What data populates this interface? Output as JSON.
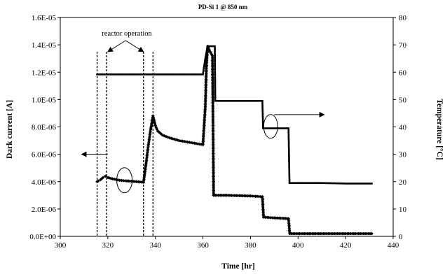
{
  "chart_data": {
    "type": "line",
    "title": "PD-Si 1 @ 850 nm",
    "xlabel": "Time [hr]",
    "ylabel_left": "Dark current [A]",
    "ylabel_right": "Temperature [°C]",
    "xlim": [
      300,
      440
    ],
    "ylim_left": [
      0,
      1.6e-05
    ],
    "ylim_right": [
      0,
      80
    ],
    "x_ticks": [
      "300",
      "320",
      "340",
      "360",
      "380",
      "400",
      "420",
      "440"
    ],
    "y_left_ticks": [
      "0.0E+00",
      "2.0E-06",
      "4.0E-06",
      "6.0E-06",
      "8.0E-06",
      "1.0E-05",
      "1.2E-05",
      "1.4E-05",
      "1.6E-05"
    ],
    "y_right_ticks": [
      "0",
      "10",
      "20",
      "30",
      "40",
      "50",
      "60",
      "70",
      "80"
    ],
    "grid": false,
    "legend": "none",
    "annotation": "reactor operation",
    "reactor_operation_lines_x": [
      315.5,
      319.5,
      335,
      339
    ],
    "series": [
      {
        "axis": "left",
        "marker": "diamond",
        "points": [
          [
            315.5,
            4e-06
          ],
          [
            316,
            4.05e-06
          ],
          [
            317,
            4.15e-06
          ],
          [
            318,
            4.3e-06
          ],
          [
            319,
            4.4e-06
          ],
          [
            320,
            4.3e-06
          ],
          [
            322,
            4.2e-06
          ],
          [
            325,
            4.1e-06
          ],
          [
            328,
            4.05e-06
          ],
          [
            332,
            4e-06
          ],
          [
            335,
            3.95e-06
          ],
          [
            336,
            5.2e-06
          ],
          [
            337,
            6.6e-06
          ],
          [
            338,
            7.8e-06
          ],
          [
            339,
            8.8e-06
          ],
          [
            340,
            8.1e-06
          ],
          [
            341,
            7.7e-06
          ],
          [
            343,
            7.4e-06
          ],
          [
            346,
            7.2e-06
          ],
          [
            350,
            7e-06
          ],
          [
            355,
            6.85e-06
          ],
          [
            360,
            6.7e-06
          ],
          [
            361,
            9.5e-06
          ],
          [
            361.5,
            1.25e-05
          ],
          [
            362,
            1.39e-05
          ],
          [
            363,
            1.35e-05
          ],
          [
            364,
            1.32e-05
          ],
          [
            364.5,
            3e-06
          ],
          [
            370,
            3e-06
          ],
          [
            380,
            2.95e-06
          ],
          [
            385,
            2.9e-06
          ],
          [
            385.5,
            1.4e-06
          ],
          [
            390,
            1.35e-06
          ],
          [
            396,
            1.3e-06
          ],
          [
            396.5,
            2e-07
          ],
          [
            400,
            2e-07
          ],
          [
            410,
            2e-07
          ],
          [
            420,
            2e-07
          ],
          [
            431,
            2e-07
          ]
        ]
      },
      {
        "axis": "right",
        "marker": "square",
        "points": [
          [
            315.5,
            59.2
          ],
          [
            320,
            59.2
          ],
          [
            330,
            59.2
          ],
          [
            340,
            59.2
          ],
          [
            350,
            59.2
          ],
          [
            360,
            59.2
          ],
          [
            361,
            65
          ],
          [
            362,
            69.5
          ],
          [
            365,
            69.5
          ],
          [
            365.2,
            49.5
          ],
          [
            370,
            49.5
          ],
          [
            380,
            49.5
          ],
          [
            385,
            49.5
          ],
          [
            385.3,
            39.5
          ],
          [
            390,
            39.5
          ],
          [
            396,
            39.5
          ],
          [
            396.4,
            19.5
          ],
          [
            400,
            19.5
          ],
          [
            410,
            19.5
          ],
          [
            420,
            19.3
          ],
          [
            431,
            19.3
          ]
        ]
      }
    ]
  }
}
